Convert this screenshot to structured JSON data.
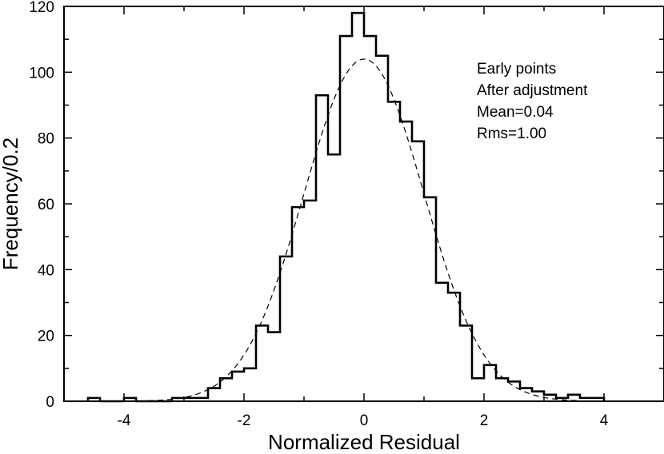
{
  "chart_data": {
    "type": "bar",
    "subtype": "step-histogram",
    "title": "",
    "xlabel": "Normalized Residual",
    "ylabel": "Frequency/0.2",
    "xlim": [
      -5,
      5
    ],
    "ylim": [
      0,
      120
    ],
    "x_ticks": [
      -4,
      -2,
      0,
      2,
      4
    ],
    "x_tick_labels": [
      "-4",
      "-2",
      "0",
      "2",
      "4"
    ],
    "y_ticks": [
      0,
      20,
      40,
      60,
      80,
      100,
      120
    ],
    "y_tick_labels": [
      "0",
      "20",
      "40",
      "60",
      "80",
      "100",
      "120"
    ],
    "grid": false,
    "bin_width": 0.2,
    "series": [
      {
        "type": "histogram",
        "style": "solid-step",
        "bin_edges": [
          -4.6,
          -4.4,
          -4.2,
          -4.0,
          -3.8,
          -3.6,
          -3.4,
          -3.2,
          -3.0,
          -2.8,
          -2.6,
          -2.4,
          -2.2,
          -2.0,
          -1.8,
          -1.6,
          -1.4,
          -1.2,
          -1.0,
          -0.8,
          -0.6,
          -0.4,
          -0.2,
          0.0,
          0.2,
          0.4,
          0.6,
          0.8,
          1.0,
          1.2,
          1.4,
          1.6,
          1.8,
          2.0,
          2.2,
          2.4,
          2.6,
          2.8,
          3.0,
          3.2,
          3.4,
          3.6,
          3.8,
          4.0
        ],
        "counts": [
          1,
          0,
          0,
          1,
          0,
          0,
          0,
          1,
          1,
          1,
          4,
          7,
          9,
          10,
          23,
          21,
          44,
          59,
          61,
          93,
          75,
          111,
          118,
          111,
          105,
          91,
          85,
          79,
          62,
          36,
          33,
          23,
          7,
          11,
          7,
          6,
          4,
          3,
          2,
          1,
          2,
          1,
          1
        ]
      },
      {
        "type": "curve",
        "style": "dashed",
        "description": "Gaussian fit",
        "mean": 0.0,
        "sigma": 1.0,
        "peak": 104
      }
    ],
    "annotations": [
      "Early points",
      "After adjustment",
      "Mean=0.04",
      "Rms=1.00"
    ],
    "annotation_position": "top-right"
  }
}
